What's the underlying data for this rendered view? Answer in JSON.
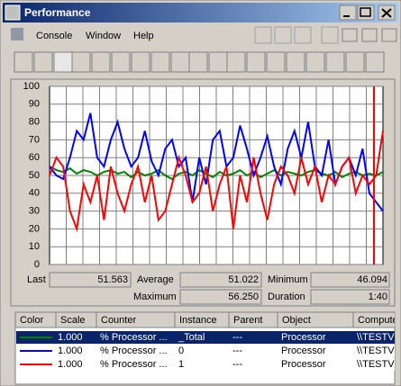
{
  "window": {
    "title": "Performance"
  },
  "menu": [
    "Console",
    "Window",
    "Help"
  ],
  "chart_data": {
    "type": "line",
    "ylim": [
      0,
      100
    ],
    "yticks": [
      0,
      10,
      20,
      30,
      40,
      50,
      60,
      70,
      80,
      90,
      100
    ],
    "grid": true,
    "series": [
      {
        "color": "#008000",
        "values": [
          55,
          53,
          52,
          54,
          51,
          53,
          52,
          50,
          52,
          53,
          51,
          52,
          49,
          52,
          50,
          51,
          53,
          50,
          48,
          51,
          52,
          50,
          53,
          51,
          49,
          52,
          50,
          51,
          53,
          50,
          52,
          49,
          51,
          53,
          50,
          52,
          51,
          50,
          52,
          53,
          51,
          50,
          52,
          49,
          51,
          52,
          50,
          51,
          50,
          52
        ]
      },
      {
        "color": "#0000ff",
        "values": [
          55,
          50,
          48,
          60,
          75,
          70,
          85,
          60,
          55,
          70,
          80,
          65,
          55,
          60,
          75,
          58,
          50,
          65,
          70,
          55,
          60,
          35,
          60,
          45,
          70,
          75,
          55,
          60,
          78,
          65,
          50,
          60,
          72,
          55,
          45,
          65,
          75,
          60,
          80,
          55,
          50,
          70,
          45,
          55,
          60,
          50,
          65,
          40,
          35,
          30
        ]
      },
      {
        "color": "#ff0000",
        "values": [
          50,
          60,
          55,
          30,
          20,
          45,
          35,
          50,
          25,
          55,
          40,
          30,
          45,
          55,
          35,
          50,
          25,
          30,
          45,
          60,
          50,
          35,
          40,
          55,
          30,
          45,
          55,
          20,
          50,
          35,
          60,
          40,
          25,
          45,
          55,
          50,
          40,
          60,
          45,
          55,
          35,
          50,
          45,
          55,
          60,
          40,
          50,
          45,
          50,
          75
        ]
      }
    ]
  },
  "stats": {
    "last_label": "Last",
    "last": "51.563",
    "average_label": "Average",
    "average": "51.022",
    "minimum_label": "Minimum",
    "minimum": "46.094",
    "maximum_label": "Maximum",
    "maximum": "56.250",
    "duration_label": "Duration",
    "duration": "1:40"
  },
  "legend_table": {
    "headers": [
      "Color",
      "Scale",
      "Counter",
      "Instance",
      "Parent",
      "Object",
      "Computer"
    ],
    "rows": [
      [
        "1.000",
        "% Processor ...",
        "_Total",
        "---",
        "Processor",
        "\\\\TESTV"
      ],
      [
        "1.000",
        "% Processor ...",
        "0",
        "---",
        "Processor",
        "\\\\TESTV"
      ],
      [
        "1.000",
        "% Processor ...",
        "1",
        "---",
        "Processor",
        "\\\\TESTV"
      ]
    ]
  }
}
